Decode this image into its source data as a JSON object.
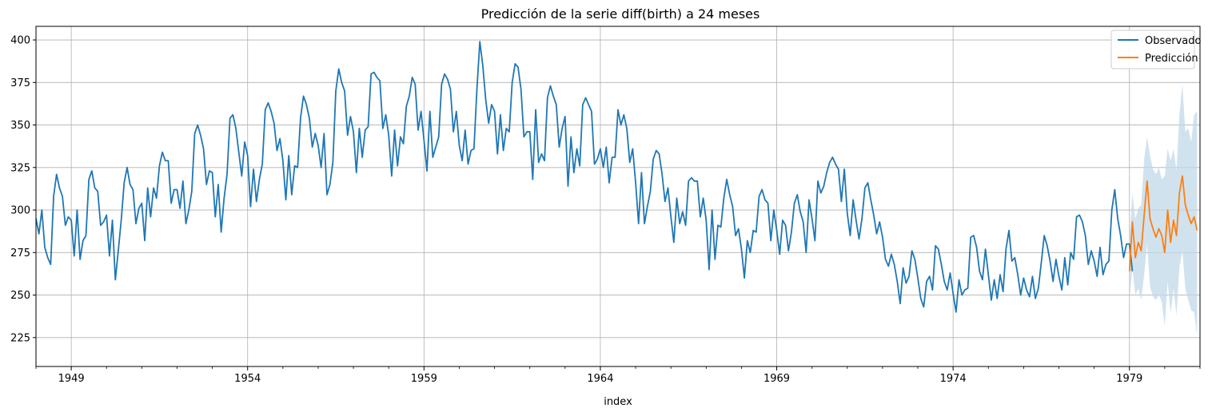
{
  "chart_data": {
    "type": "line",
    "title": "Predicción de la serie diff(birth) a 24 meses",
    "xlabel": "index",
    "ylabel": "",
    "x_ticks": [
      1949,
      1954,
      1959,
      1964,
      1969,
      1974,
      1979
    ],
    "xlim": [
      1948.0,
      1981.0
    ],
    "ylim": [
      208,
      408
    ],
    "y_ticks": [
      225,
      250,
      275,
      300,
      325,
      350,
      375,
      400
    ],
    "grid": true,
    "legend_position": "top-right",
    "series": [
      {
        "name": "Observado",
        "color": "#1f77b4",
        "start": 1948.0,
        "step_months": 1,
        "values": [
          295,
          286,
          300,
          278,
          272,
          268,
          308,
          321,
          313,
          308,
          291,
          296,
          294,
          273,
          300,
          271,
          282,
          285,
          318,
          323,
          313,
          311,
          291,
          293,
          297,
          273,
          294,
          259,
          276,
          294,
          316,
          325,
          315,
          312,
          292,
          301,
          304,
          282,
          313,
          296,
          313,
          307,
          326,
          334,
          329,
          329,
          304,
          312,
          312,
          301,
          317,
          292,
          300,
          311,
          345,
          350,
          344,
          336,
          315,
          323,
          322,
          296,
          315,
          287,
          307,
          321,
          354,
          356,
          348,
          334,
          320,
          340,
          332,
          302,
          324,
          305,
          318,
          327,
          359,
          363,
          358,
          351,
          335,
          342,
          329,
          306,
          332,
          309,
          326,
          325,
          354,
          367,
          362,
          354,
          337,
          345,
          338,
          325,
          345,
          309,
          315,
          328,
          370,
          383,
          375,
          370,
          344,
          355,
          346,
          322,
          348,
          331,
          347,
          349,
          380,
          381,
          378,
          376,
          348,
          356,
          344,
          320,
          347,
          326,
          343,
          339,
          361,
          367,
          378,
          374,
          347,
          358,
          341,
          323,
          358,
          331,
          337,
          343,
          374,
          380,
          377,
          371,
          346,
          358,
          338,
          329,
          347,
          327,
          335,
          336,
          371,
          399,
          385,
          365,
          351,
          362,
          358,
          333,
          356,
          335,
          348,
          346,
          375,
          386,
          384,
          371,
          343,
          346,
          346,
          318,
          359,
          328,
          333,
          329,
          366,
          373,
          367,
          362,
          337,
          348,
          355,
          314,
          343,
          322,
          336,
          326,
          362,
          366,
          362,
          358,
          327,
          330,
          336,
          325,
          337,
          316,
          331,
          331,
          359,
          350,
          356,
          348,
          328,
          336,
          316,
          292,
          322,
          292,
          302,
          311,
          330,
          335,
          333,
          321,
          305,
          313,
          296,
          281,
          307,
          292,
          299,
          291,
          317,
          319,
          317,
          317,
          296,
          307,
          294,
          265,
          300,
          271,
          291,
          290,
          307,
          318,
          309,
          302,
          285,
          289,
          277,
          260,
          282,
          275,
          288,
          287,
          308,
          312,
          306,
          304,
          282,
          300,
          288,
          274,
          294,
          291,
          276,
          287,
          304,
          309,
          299,
          293,
          275,
          306,
          295,
          282,
          317,
          310,
          314,
          322,
          328,
          331,
          327,
          324,
          305,
          324,
          298,
          285,
          306,
          294,
          283,
          295,
          313,
          316,
          306,
          297,
          286,
          293,
          284,
          271,
          267,
          274,
          268,
          258,
          245,
          266,
          257,
          261,
          276,
          271,
          260,
          248,
          243,
          258,
          261,
          253,
          279,
          277,
          268,
          258,
          253,
          263,
          251,
          240,
          259,
          250,
          253,
          254,
          284,
          285,
          278,
          264,
          259,
          277,
          262,
          247,
          259,
          248,
          262,
          252,
          277,
          288,
          270,
          272,
          262,
          250,
          260,
          253,
          249,
          261,
          248,
          254,
          269,
          285,
          279,
          270,
          258,
          271,
          261,
          253,
          272,
          256,
          275,
          271,
          296,
          297,
          293,
          285,
          268,
          276,
          270,
          261,
          278,
          262,
          268,
          270,
          300,
          312,
          295,
          285,
          272,
          280,
          280,
          264
        ]
      },
      {
        "name": "Predicción",
        "color": "#ff7f0e",
        "start": 1979.0,
        "step_months": 1,
        "values": [
          264,
          293,
          272,
          281,
          276,
          297,
          317,
          295,
          289,
          284,
          289,
          285,
          275,
          300,
          281,
          294,
          285,
          310,
          320,
          303,
          297,
          292,
          296,
          288
        ],
        "ci_lower": [
          246,
          266,
          250,
          254,
          247,
          262,
          280,
          255,
          249,
          247,
          250,
          246,
          232,
          258,
          239,
          254,
          238,
          266,
          276,
          254,
          247,
          241,
          240,
          226
        ],
        "ci_upper": [
          283,
          310,
          295,
          301,
          303,
          330,
          343,
          332,
          324,
          321,
          325,
          318,
          320,
          336,
          329,
          336,
          323,
          356,
          374,
          346,
          348,
          340,
          356,
          358
        ],
        "ci_color": "#c2d8ea"
      }
    ]
  }
}
